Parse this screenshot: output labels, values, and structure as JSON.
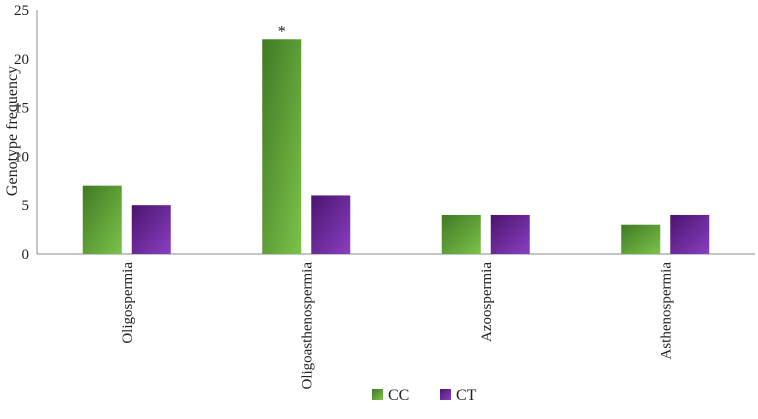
{
  "chart_data": {
    "type": "bar",
    "title": "",
    "xlabel": "",
    "ylabel": "Genotype  frequency",
    "ylim": [
      0,
      25
    ],
    "yticks": [
      0,
      5,
      10,
      15,
      20,
      25
    ],
    "grid": false,
    "legend_position": "bottom",
    "categories": [
      "Oligospermia",
      "Oligoasthenospermia",
      "Azoospermia",
      "Asthenospermia"
    ],
    "series": [
      {
        "name": "CC",
        "values": [
          7,
          22,
          4,
          3
        ],
        "color": "#4a8a2a"
      },
      {
        "name": "CT",
        "values": [
          5,
          6,
          4,
          4
        ],
        "color": "#5b1a86"
      }
    ],
    "annotations": [
      {
        "category": "Oligoasthenospermia",
        "series": "CC",
        "text": "*"
      }
    ]
  }
}
